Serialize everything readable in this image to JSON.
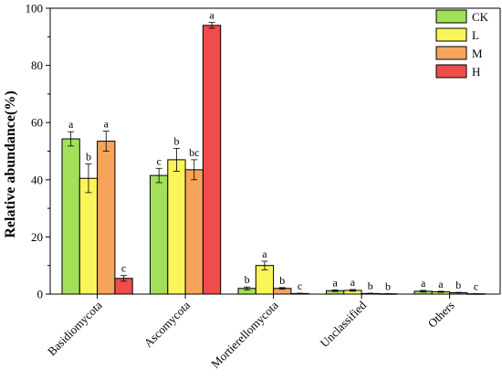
{
  "chart_data": {
    "type": "bar",
    "title": "",
    "xlabel": "",
    "ylabel": "Relative abundance(%)",
    "ylim": [
      0,
      100
    ],
    "yticks": [
      0,
      20,
      40,
      60,
      80,
      100
    ],
    "categories": [
      "Basidiomycota",
      "Ascomycota",
      "Mortierellomycota",
      "Unclassified",
      "Others"
    ],
    "series": [
      {
        "name": "CK",
        "color": "#a2e05a",
        "values": [
          54.3,
          41.5,
          2.0,
          1.2,
          1.0
        ],
        "errors": [
          2.5,
          2.5,
          0.5,
          0.3,
          0.3
        ],
        "labels": [
          "a",
          "c",
          "b",
          "a",
          "a"
        ]
      },
      {
        "name": "L",
        "color": "#f9f55a",
        "values": [
          40.5,
          47.0,
          10.0,
          1.3,
          0.8
        ],
        "errors": [
          5.0,
          4.0,
          1.5,
          0.3,
          0.2
        ],
        "labels": [
          "b",
          "b",
          "a",
          "a",
          "a"
        ]
      },
      {
        "name": "M",
        "color": "#f6a45b",
        "values": [
          53.5,
          43.5,
          2.0,
          0.2,
          0.5
        ],
        "errors": [
          3.5,
          3.5,
          0.3,
          0.1,
          0.1
        ],
        "labels": [
          "a",
          "bc",
          "b",
          "b",
          "b"
        ]
      },
      {
        "name": "H",
        "color": "#f04c4c",
        "values": [
          5.5,
          94.0,
          0.2,
          0.1,
          0.1
        ],
        "errors": [
          1.0,
          1.0,
          0.1,
          0.05,
          0.05
        ],
        "labels": [
          "c",
          "a",
          "c",
          "b",
          "c"
        ]
      }
    ],
    "legend": "top-right",
    "grid": false
  }
}
